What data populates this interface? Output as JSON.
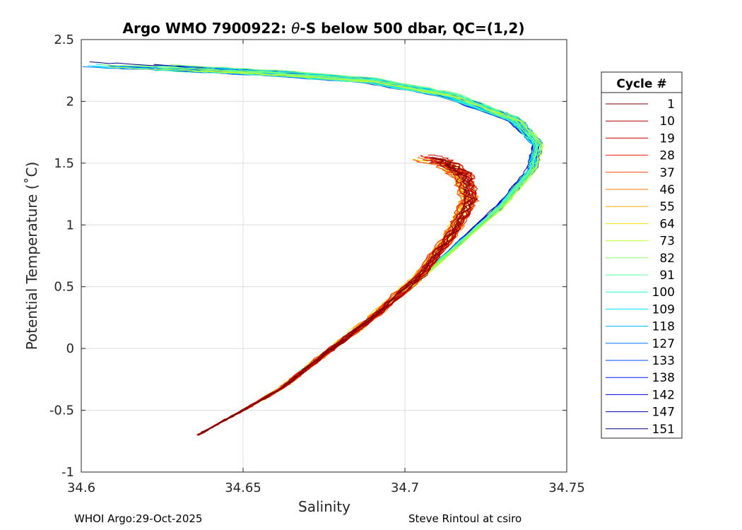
{
  "chart_data": {
    "type": "line",
    "title_prefix": "Argo WMO 7900922: ",
    "title_theta": "θ",
    "title_suffix": "-S below 500 dbar,  QC=(1,2)",
    "xlabel": "Salinity",
    "ylabel": "Potential Temperature (˚C)",
    "xlim": [
      34.6,
      34.75
    ],
    "ylim": [
      -1,
      2.5
    ],
    "xticks": [
      34.6,
      34.65,
      34.7,
      34.75
    ],
    "xtick_labels": [
      "34.6",
      "34.65",
      "34.7",
      "34.75"
    ],
    "yticks": [
      -1,
      -0.5,
      0,
      0.5,
      1,
      1.5,
      2,
      2.5
    ],
    "ytick_labels": [
      "-1",
      "-0.5",
      "0",
      "0.5",
      "1",
      "1.5",
      "2",
      "2.5"
    ],
    "grid": true,
    "legend_title": "Cycle #",
    "legend_position": "outside-right",
    "legend": [
      {
        "label": "1",
        "color": "#7f0000"
      },
      {
        "label": "10",
        "color": "#a80000"
      },
      {
        "label": "19",
        "color": "#d40000"
      },
      {
        "label": "28",
        "color": "#f51a00"
      },
      {
        "label": "37",
        "color": "#ff4a00"
      },
      {
        "label": "46",
        "color": "#ff7a00"
      },
      {
        "label": "55",
        "color": "#ffad00"
      },
      {
        "label": "64",
        "color": "#f0e000"
      },
      {
        "label": "73",
        "color": "#c0ff30"
      },
      {
        "label": "82",
        "color": "#8aff6a"
      },
      {
        "label": "91",
        "color": "#55ff9f"
      },
      {
        "label": "100",
        "color": "#22ffd5"
      },
      {
        "label": "109",
        "color": "#00e0ff"
      },
      {
        "label": "118",
        "color": "#00b0ff"
      },
      {
        "label": "127",
        "color": "#0078ff"
      },
      {
        "label": "133",
        "color": "#0048ff"
      },
      {
        "label": "138",
        "color": "#0018ff"
      },
      {
        "label": "142",
        "color": "#0000d8"
      },
      {
        "label": "147",
        "color": "#0000a8"
      },
      {
        "label": "151",
        "color": "#000080"
      }
    ],
    "profile_envelope": {
      "early_cycles": {
        "S": [
          34.636,
          34.65,
          34.662,
          34.675,
          34.69,
          34.705,
          34.715,
          34.72,
          34.718,
          34.712,
          34.705
        ],
        "T": [
          -0.7,
          -0.5,
          -0.32,
          -0.05,
          0.25,
          0.6,
          0.95,
          1.2,
          1.4,
          1.5,
          1.55
        ]
      },
      "late_cycles": {
        "S": [
          34.66,
          34.68,
          34.7,
          34.715,
          34.73,
          34.74,
          34.742,
          34.735,
          34.715,
          34.69,
          34.66,
          34.63,
          34.605
        ],
        "T": [
          -0.33,
          0.05,
          0.45,
          0.8,
          1.15,
          1.45,
          1.65,
          1.85,
          2.05,
          2.17,
          2.23,
          2.27,
          2.3
        ]
      }
    }
  },
  "footer": {
    "left": "WHOI Argo:29-Oct-2025",
    "right": "Steve Rintoul at csiro"
  }
}
